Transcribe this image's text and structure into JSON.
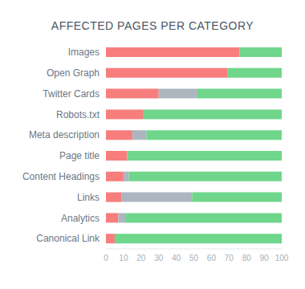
{
  "chart_data": {
    "type": "bar",
    "title": "AFFECTED PAGES PER CATEGORY",
    "orientation": "horizontal",
    "stacked": true,
    "grid": false,
    "categories": [
      "Images",
      "Open Graph",
      "Twitter Cards",
      "Robots.txt",
      "Meta description",
      "Page title",
      "Content Headings",
      "Links",
      "Analytics",
      "Canonical Link"
    ],
    "series": [
      {
        "color": "#f87d7d",
        "values": [
          76,
          69,
          30,
          21,
          15,
          12,
          10,
          9,
          7,
          5
        ]
      },
      {
        "color": "#adb6bf",
        "values": [
          0,
          0,
          22,
          0,
          8,
          0,
          3,
          40,
          4,
          0
        ]
      },
      {
        "color": "#6fd68b",
        "values": [
          24,
          31,
          48,
          79,
          77,
          88,
          87,
          51,
          89,
          95
        ]
      }
    ],
    "xlim": [
      0,
      100
    ],
    "xticks": [
      0,
      10,
      20,
      30,
      40,
      50,
      60,
      70,
      80,
      90,
      100
    ]
  }
}
